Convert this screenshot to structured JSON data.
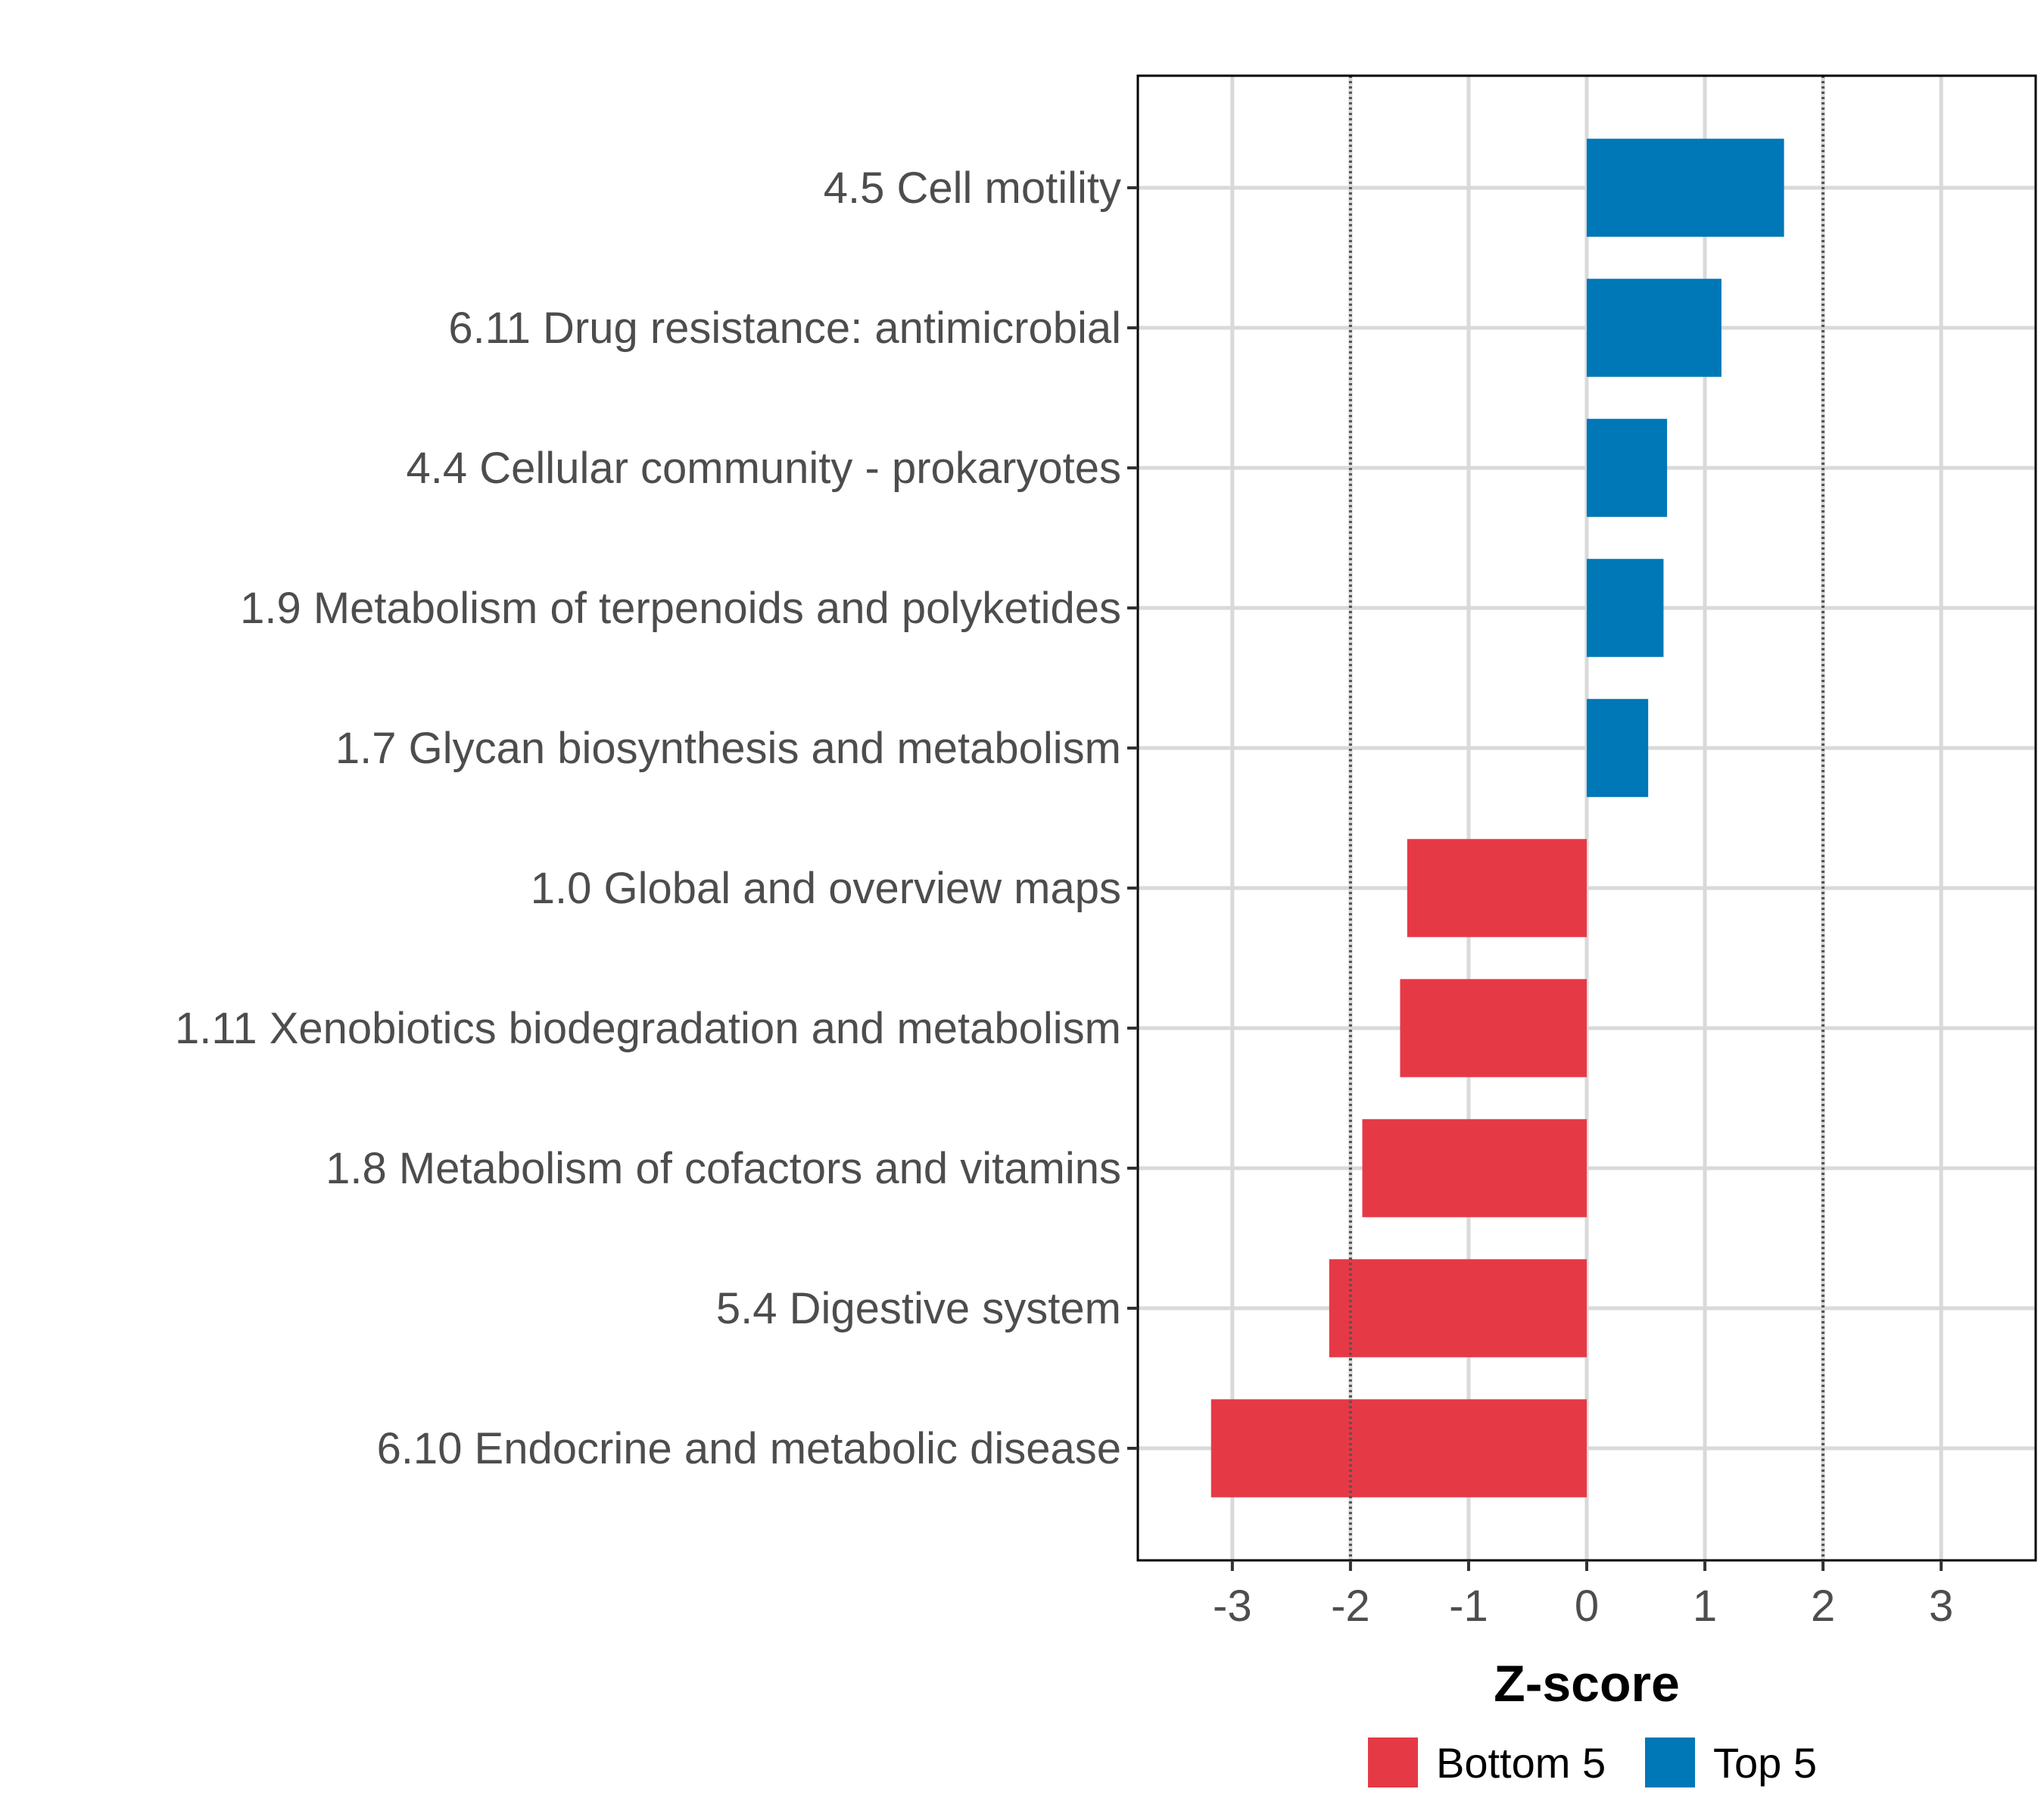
{
  "chart_data": {
    "type": "bar",
    "orientation": "horizontal",
    "title": "",
    "xlabel": "Z-score",
    "ylabel": "",
    "xlim": [
      -3.8,
      3.8
    ],
    "x_ticks": [
      -3,
      -2,
      -1,
      0,
      1,
      2,
      3
    ],
    "x_tick_labels": [
      "-3",
      "-2",
      "-1",
      "0",
      "1",
      "2",
      "3"
    ],
    "reference_lines": [
      -2,
      2
    ],
    "grid": true,
    "categories": [
      "4.5 Cell motility",
      "6.11 Drug resistance: antimicrobial",
      "4.4 Cellular community - prokaryotes",
      "1.9 Metabolism of terpenoids and polyketides",
      "1.7 Glycan biosynthesis and metabolism",
      "1.0 Global and overview maps",
      "1.11 Xenobiotics biodegradation and metabolism",
      "1.8 Metabolism of cofactors and vitamins",
      "5.4 Digestive system",
      "6.10 Endocrine and metabolic disease"
    ],
    "values": [
      1.67,
      1.14,
      0.68,
      0.65,
      0.52,
      -1.52,
      -1.58,
      -1.9,
      -2.18,
      -3.18
    ],
    "groups": [
      "Top 5",
      "Top 5",
      "Top 5",
      "Top 5",
      "Top 5",
      "Bottom 5",
      "Bottom 5",
      "Bottom 5",
      "Bottom 5",
      "Bottom 5"
    ],
    "legend": {
      "position": "bottom",
      "entries": [
        {
          "label": "Bottom 5",
          "color": "#e63946"
        },
        {
          "label": "Top 5",
          "color": "#0077b6"
        }
      ]
    }
  }
}
